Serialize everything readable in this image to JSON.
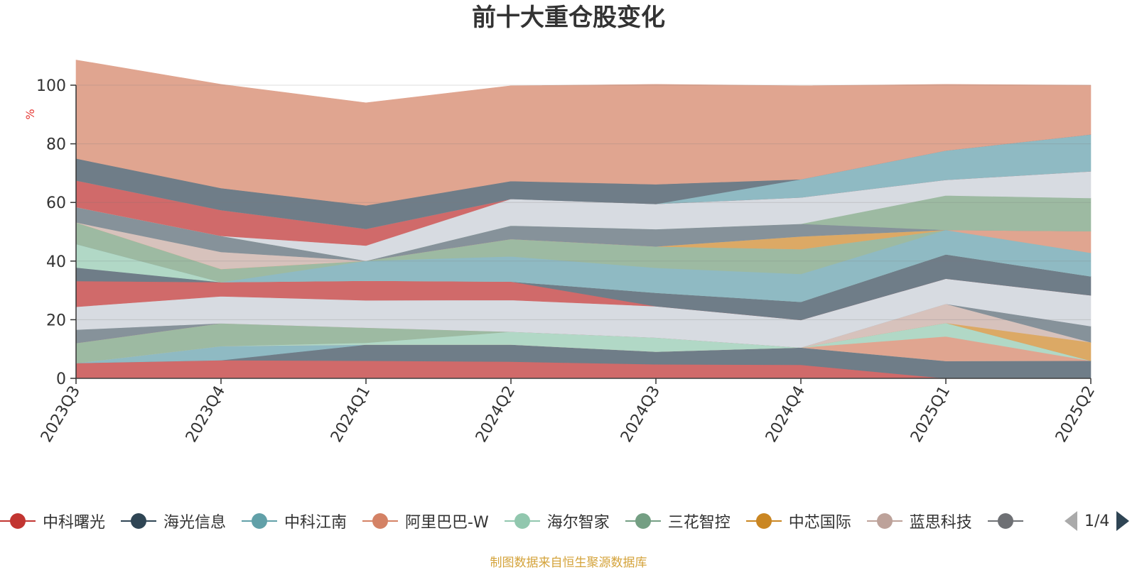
{
  "title": "前十大重仓股变化",
  "source_note": "制图数据来自恒生聚源数据库",
  "pager": {
    "text": "1/4"
  },
  "chart_data": {
    "type": "area",
    "stacked": true,
    "title": "前十大重仓股变化",
    "ylabel": "%",
    "ylim": [
      0,
      100
    ],
    "yticks": [
      0,
      20,
      40,
      60,
      80,
      100
    ],
    "grid": true,
    "x_label_rotation": 60,
    "x": [
      "2023Q3",
      "2023Q4",
      "2024Q1",
      "2024Q2",
      "2024Q3",
      "2024Q4",
      "2025Q1",
      "2025Q2"
    ],
    "series": [
      {
        "name": "中科曙光",
        "color": "#d06a6a",
        "values": [
          5.2,
          6.2,
          6.0,
          5.7,
          4.8,
          4.6,
          0,
          0
        ]
      },
      {
        "name": "海光信息",
        "color": "#6f7d88",
        "values": [
          0,
          0,
          5.5,
          5.8,
          4.3,
          5.9,
          5.9,
          6.0
        ]
      },
      {
        "name": "中科江南",
        "color": "#8fbac3",
        "values": [
          0,
          4.8,
          0,
          0,
          0,
          0,
          0,
          0
        ]
      },
      {
        "name": "阿里巴巴-W",
        "color": "#e0a590",
        "values": [
          0,
          0,
          0,
          0,
          0,
          0,
          8.4,
          0
        ]
      },
      {
        "name": "海尔智家",
        "color": "#b1d8c6",
        "values": [
          0,
          0,
          0.6,
          4.4,
          4.8,
          0,
          4.6,
          0
        ]
      },
      {
        "name": "三花智控",
        "color": "#9dbaa2",
        "values": [
          6.8,
          7.8,
          5.2,
          0,
          0,
          0,
          0,
          0
        ]
      },
      {
        "name": "中芯国际",
        "color": "#dca965",
        "values": [
          0,
          0,
          0,
          0,
          0,
          0,
          0,
          6.3
        ]
      },
      {
        "name": "蓝思科技",
        "color": "#d7c2bc",
        "values": [
          0,
          0,
          0,
          0,
          0,
          0,
          6.5,
          0
        ]
      },
      {
        "name": "",
        "color": "#86929a",
        "values": [
          4.6,
          0,
          0,
          0,
          0,
          0,
          0,
          5.5
        ]
      },
      {
        "name": "",
        "color": "#d7dbe1",
        "values": [
          7.8,
          9.2,
          9.3,
          10.8,
          10.7,
          9.4,
          8.6,
          10.5
        ]
      },
      {
        "name": "",
        "color": "#d06a6a",
        "values": [
          8.8,
          4.8,
          6.7,
          6.3,
          0,
          0,
          0,
          0
        ]
      },
      {
        "name": "",
        "color": "#6f7d88",
        "values": [
          4.6,
          0,
          0,
          0,
          4.6,
          6.2,
          8.3,
          6.5
        ]
      },
      {
        "name": "",
        "color": "#b1d8c6",
        "values": [
          8.0,
          0,
          0,
          0,
          0,
          0,
          0,
          0
        ]
      },
      {
        "name": "",
        "color": "#8fbac3",
        "values": [
          0,
          0,
          6.8,
          8.6,
          8.5,
          9.5,
          8.3,
          8.0
        ]
      },
      {
        "name": "",
        "color": "#9dbaa2",
        "values": [
          7.4,
          4.5,
          0,
          5.9,
          7.3,
          8.5,
          0,
          0
        ]
      },
      {
        "name": "",
        "color": "#e0a590",
        "values": [
          0,
          0,
          0,
          0,
          0,
          0,
          0,
          7.4
        ]
      },
      {
        "name": "",
        "color": "#dca965",
        "values": [
          0,
          0,
          0,
          0,
          0,
          4.3,
          0,
          0
        ]
      },
      {
        "name": "",
        "color": "#d7c2bc",
        "values": [
          0,
          5.8,
          0,
          0,
          0,
          0,
          0,
          0
        ]
      },
      {
        "name": "",
        "color": "#86929a",
        "values": [
          5.2,
          5.5,
          0,
          4.6,
          5.9,
          4.3,
          0,
          0
        ]
      },
      {
        "name": "",
        "color": "#9dbaa2",
        "values": [
          0,
          0,
          0,
          0,
          0,
          0,
          11.8,
          11.3
        ]
      },
      {
        "name": "",
        "color": "#d7dbe1",
        "values": [
          0,
          0,
          5.2,
          9.1,
          8.6,
          9.0,
          5.3,
          9.1
        ]
      },
      {
        "name": "",
        "color": "#d06a6a",
        "values": [
          9.1,
          8.8,
          5.7,
          0,
          0,
          0,
          0,
          0
        ]
      },
      {
        "name": "",
        "color": "#8fbac3",
        "values": [
          0,
          0,
          0,
          0,
          0,
          6.2,
          10.0,
          12.6
        ]
      },
      {
        "name": "",
        "color": "#6f7d88",
        "values": [
          7.5,
          7.5,
          8.0,
          6.1,
          6.7,
          0,
          0,
          0
        ]
      },
      {
        "name": "",
        "color": "#e0a590",
        "values": [
          33.6,
          35.4,
          35.0,
          32.5,
          34.1,
          31.9,
          22.6,
          16.8
        ]
      }
    ]
  },
  "legend": {
    "items": [
      {
        "label": "中科曙光",
        "color": "#c23531"
      },
      {
        "label": "海光信息",
        "color": "#2f4554"
      },
      {
        "label": "中科江南",
        "color": "#61a0a8"
      },
      {
        "label": "阿里巴巴-W",
        "color": "#d48265"
      },
      {
        "label": "海尔智家",
        "color": "#91c7ae"
      },
      {
        "label": "三花智控",
        "color": "#749f83"
      },
      {
        "label": "中芯国际",
        "color": "#ca8622"
      },
      {
        "label": "蓝思科技",
        "color": "#bda29a"
      },
      {
        "label": "",
        "color": "#6e7074"
      }
    ]
  }
}
